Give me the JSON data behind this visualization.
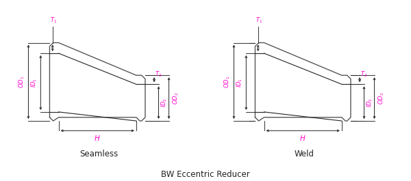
{
  "title": "BW Eccentric Reducer",
  "left_label": "Seamless",
  "right_label": "Weld",
  "mag": "#FF00CC",
  "dk": "#222222",
  "gray": "#999999",
  "bg": "#FFFFFF",
  "body_fill": "#FFFFFF",
  "body_edge": "#555555"
}
